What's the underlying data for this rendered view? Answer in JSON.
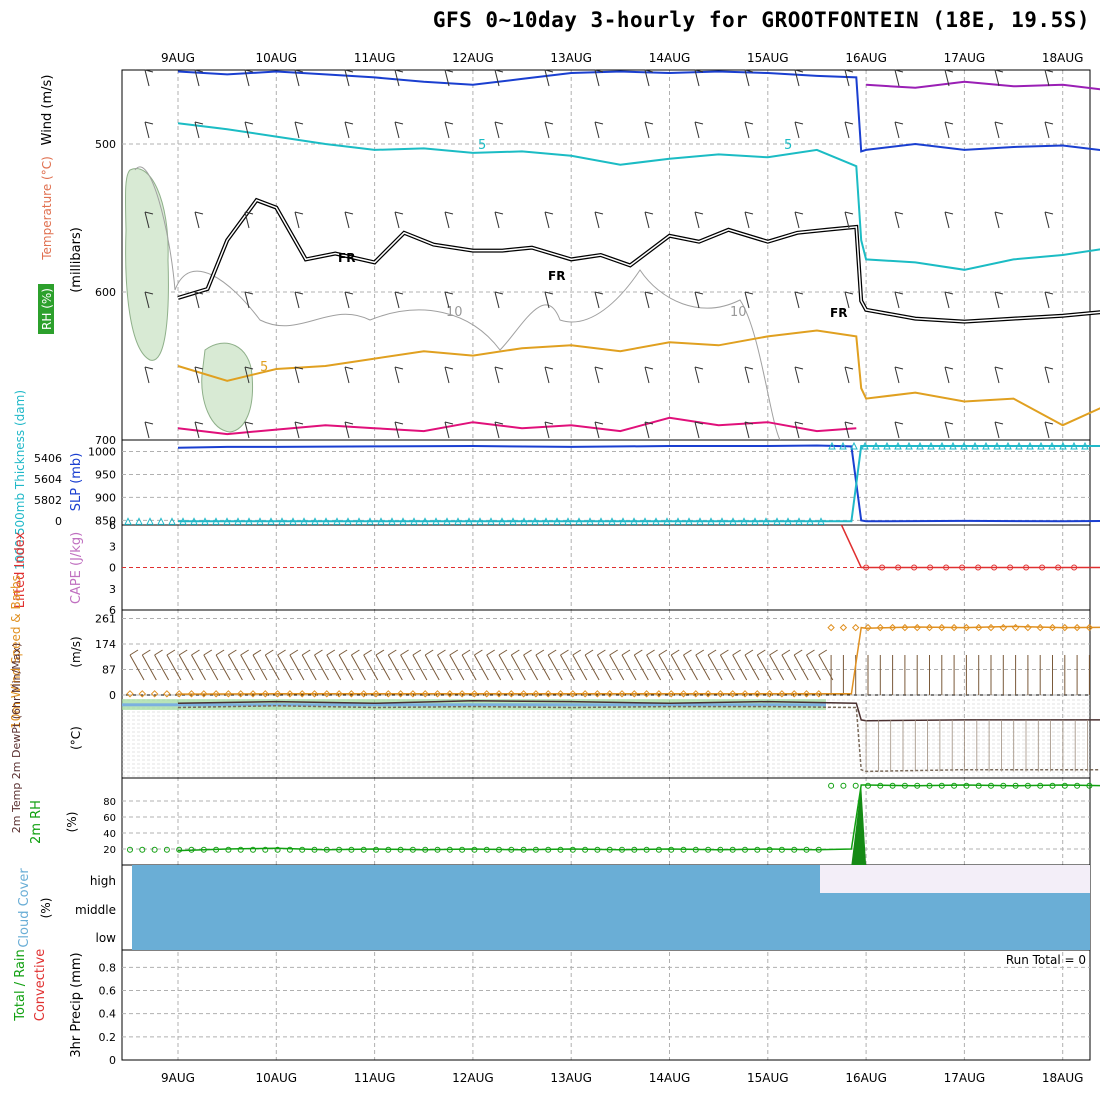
{
  "title": "GFS 0~10day 3-hourly for GROOTFONTEIN (18E, 19.5S)",
  "date_labels": [
    "9AUG",
    "10AUG",
    "11AUG",
    "12AUG",
    "13AUG",
    "14AUG",
    "15AUG",
    "16AUG",
    "17AUG",
    "18AUG"
  ],
  "colors": {
    "rh_fill": "#d8ead4",
    "rh_contour": "#a0a0a0",
    "wind_500": "#1a3fd0",
    "wind_purple": "#9a1fb5",
    "temp_cyan": "#1bbcc4",
    "freezing_line": "#000000",
    "temp_orange": "#e0a020",
    "temp_magenta": "#e0107a",
    "slp": "#1a3fd0",
    "thickness": "#20b8c8",
    "lifted_index": "#e03030",
    "wind_speed": "#e09020",
    "barbs": "#7a5a3a",
    "rh2m": "#10a010",
    "cloud_low": "#6aaed6",
    "cloud_high": "#f3eef8"
  },
  "chart_data": [
    {
      "panel": "upper-air",
      "type": "line",
      "ylabel_parts": [
        "RH (%)",
        "Temperature (°C)",
        "Wind (m/s)"
      ],
      "ylabel_unit": "(millibars)",
      "yticks": [
        "500",
        "600",
        "700"
      ],
      "ylim": [
        700,
        450
      ],
      "contour_labels": [
        "5",
        "5",
        "10",
        "10",
        "5"
      ],
      "freezing_labels": [
        "FR",
        "FR",
        "FR"
      ],
      "series": [
        {
          "key": "upper_blue",
          "x": [
            0,
            0.5,
            1,
            1.5,
            2,
            2.5,
            3,
            3.5,
            4,
            4.5,
            5,
            5.5,
            6,
            6.5,
            6.9,
            6.95,
            7,
            7.5,
            8,
            8.5,
            9,
            9.5
          ],
          "values": [
            451,
            453,
            451,
            453,
            455,
            458,
            460,
            456,
            452,
            451,
            452,
            451,
            452,
            454,
            455,
            505,
            504,
            500,
            504,
            502,
            501,
            505
          ]
        },
        {
          "key": "upper_purple",
          "x": [
            7.0,
            7.5,
            8,
            8.5,
            9,
            9.5
          ],
          "values": [
            460,
            462,
            458,
            461,
            460,
            464
          ]
        },
        {
          "key": "cyan_temp",
          "x": [
            0,
            0.5,
            1,
            1.5,
            2,
            2.5,
            3,
            3.5,
            4,
            4.5,
            5,
            5.5,
            6,
            6.5,
            6.9,
            6.95,
            7,
            7.5,
            8,
            8.5,
            9,
            9.5
          ],
          "values": [
            486,
            490,
            495,
            500,
            504,
            503,
            506,
            505,
            508,
            514,
            510,
            507,
            509,
            504,
            515,
            565,
            578,
            580,
            585,
            578,
            575,
            570
          ]
        },
        {
          "key": "freezing_level",
          "x": [
            0,
            0.3,
            0.5,
            0.8,
            1,
            1.3,
            1.6,
            2,
            2.3,
            2.6,
            3,
            3.3,
            3.6,
            4,
            4.3,
            4.6,
            5,
            5.3,
            5.6,
            6,
            6.3,
            6.6,
            6.9,
            6.95,
            7,
            7.5,
            8,
            8.5,
            9,
            9.5
          ],
          "values": [
            604,
            598,
            565,
            538,
            543,
            578,
            574,
            580,
            560,
            568,
            572,
            572,
            570,
            578,
            575,
            582,
            562,
            566,
            558,
            566,
            560,
            558,
            556,
            606,
            612,
            618,
            620,
            618,
            616,
            613
          ]
        },
        {
          "key": "orange_temp",
          "x": [
            0,
            0.5,
            1,
            1.5,
            2,
            2.5,
            3,
            3.5,
            4,
            4.5,
            5,
            5.5,
            6,
            6.5,
            6.9,
            6.95,
            7,
            7.5,
            8,
            8.5,
            9,
            9.5
          ],
          "values": [
            650,
            660,
            652,
            650,
            645,
            640,
            643,
            638,
            636,
            640,
            634,
            636,
            630,
            626,
            630,
            665,
            672,
            668,
            674,
            672,
            690,
            675
          ]
        },
        {
          "key": "magenta_temp",
          "x": [
            0,
            0.5,
            1,
            1.5,
            2,
            2.5,
            3,
            3.5,
            4,
            4.5,
            5,
            5.5,
            6,
            6.5,
            6.9
          ],
          "values": [
            692,
            696,
            693,
            690,
            692,
            694,
            688,
            692,
            690,
            694,
            685,
            690,
            688,
            694,
            692
          ]
        }
      ]
    },
    {
      "panel": "slp-thickness",
      "type": "line",
      "ylabel": "1000-500mb Thickness (dam)",
      "ylabel2": "SLP (mb)",
      "left_ticks": [
        "5406",
        "5604",
        "5802",
        "0"
      ],
      "right_ticks": [
        "1000",
        "950",
        "900",
        "850"
      ],
      "series": [
        {
          "name": "SLP",
          "x": [
            0,
            0.5,
            1,
            2,
            3,
            4,
            5,
            6,
            6.5,
            6.85,
            6.95,
            7,
            8,
            9,
            9.5
          ],
          "values": [
            1008,
            1010,
            1010,
            1011,
            1012,
            1010,
            1012,
            1012,
            1013,
            1011,
            850,
            848,
            849,
            848,
            849
          ]
        },
        {
          "name": "Thickness",
          "x": [
            0,
            1,
            2,
            3,
            4,
            5,
            6,
            6.85,
            6.95,
            7,
            8,
            9,
            9.5
          ],
          "values": [
            848,
            848,
            848,
            848,
            848,
            848,
            848,
            848,
            1012,
            1012,
            1012,
            1012,
            1012
          ]
        }
      ]
    },
    {
      "panel": "stability",
      "type": "line",
      "ylabel": "Lifted Index",
      "ylabel2": "CAPE (J/kg)",
      "yticks": [
        "6",
        "3",
        "0",
        "3",
        "6"
      ],
      "series": [
        {
          "name": "Lifted Index",
          "x": [
            6.75,
            6.95,
            7,
            7.5,
            8,
            8.5,
            9,
            9.5
          ],
          "values": [
            -6,
            0,
            0,
            0,
            0,
            0,
            0,
            0
          ]
        }
      ]
    },
    {
      "panel": "10m-wind",
      "type": "line",
      "ylabel": "10m Wind Speed & Barbs",
      "unit": "(m/s)",
      "yticks": [
        "261",
        "174",
        "87",
        "0"
      ],
      "ylim": [
        0,
        290
      ],
      "series": [
        {
          "name": "Wind speed",
          "x": [
            0,
            1,
            2,
            3,
            4,
            5,
            6,
            6.85,
            6.95,
            7,
            7.5,
            8,
            8.5,
            9,
            9.5
          ],
          "values": [
            3,
            4,
            4,
            4,
            4,
            4,
            4,
            4,
            230,
            228,
            232,
            230,
            234,
            230,
            231
          ]
        }
      ]
    },
    {
      "panel": "2m-temp",
      "type": "line",
      "ylabel": "2m Temp 2m DewPt (6hr Min/Max)",
      "unit": "(°C)",
      "series": [
        {
          "name": "Temp",
          "x": [
            0,
            1,
            2,
            3,
            4,
            5,
            6,
            6.9,
            6.95,
            7,
            8,
            9,
            9.5
          ],
          "values": [
            0.9,
            0.92,
            0.9,
            0.93,
            0.92,
            0.9,
            0.92,
            0.9,
            0.7,
            0.69,
            0.7,
            0.7,
            0.7
          ]
        },
        {
          "name": "DewPt",
          "x": [
            0,
            1,
            2,
            3,
            4,
            5,
            6,
            6.9,
            6.95,
            7,
            8,
            9,
            9.5
          ],
          "values": [
            0.85,
            0.87,
            0.85,
            0.86,
            0.85,
            0.86,
            0.86,
            0.85,
            0.1,
            0.08,
            0.1,
            0.1,
            0.1
          ]
        }
      ]
    },
    {
      "panel": "2m-rh",
      "type": "line",
      "ylabel": "2m RH",
      "unit": "(%)",
      "yticks": [
        "80",
        "60",
        "40",
        "20"
      ],
      "ylim": [
        0,
        100
      ],
      "series": [
        {
          "name": "RH",
          "x": [
            0,
            0.5,
            1,
            1.5,
            2,
            2.5,
            3,
            3.5,
            4,
            4.5,
            5,
            5.5,
            6,
            6.5,
            6.85,
            6.95,
            7,
            7.5,
            8,
            8.5,
            9,
            9.5
          ],
          "values": [
            18,
            20,
            21,
            19,
            20,
            19,
            20,
            19,
            20,
            19,
            20,
            19,
            20,
            19,
            20,
            100,
            100,
            99,
            100,
            99,
            100,
            99
          ]
        }
      ]
    },
    {
      "panel": "cloud-cover",
      "type": "area",
      "ylabel": "Cloud Cover",
      "unit": "(%)",
      "levels": [
        "high",
        "middle",
        "low"
      ]
    },
    {
      "panel": "precip",
      "type": "bar",
      "ylabel_parts": [
        "Total / Rain",
        "Convective"
      ],
      "ylabel": "3hr Precip (mm)",
      "yticks": [
        "0.8",
        "0.6",
        "0.4",
        "0.2",
        "0"
      ],
      "ylim": [
        0,
        0.95
      ],
      "run_total": "Run Total = 0"
    }
  ]
}
